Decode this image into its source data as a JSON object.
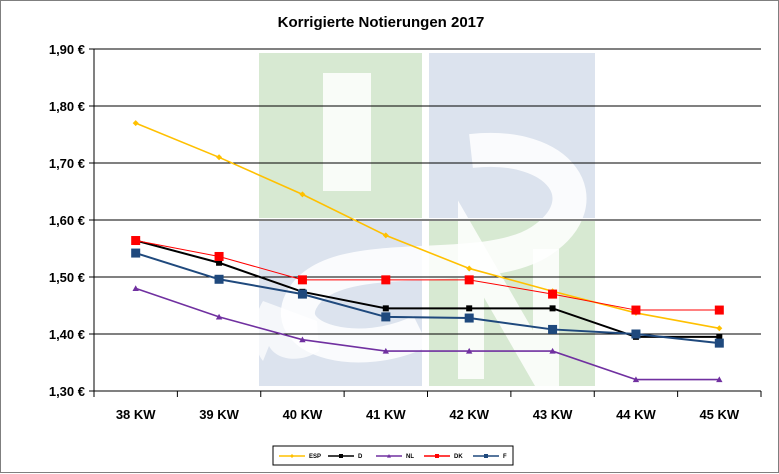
{
  "chart_data": {
    "type": "line",
    "title": "Korrigierte Notierungen 2017",
    "categories": [
      "38 KW",
      "39 KW",
      "40 KW",
      "41 KW",
      "42 KW",
      "43 KW",
      "44 KW",
      "45 KW"
    ],
    "ylim": [
      1.3,
      1.9
    ],
    "yticks": [
      1.3,
      1.4,
      1.5,
      1.6,
      1.7,
      1.8,
      1.9
    ],
    "ytick_labels": [
      "1,30 €",
      "1,40 €",
      "1,50 €",
      "1,60 €",
      "1,70 €",
      "1,80 €",
      "1,90 €"
    ],
    "grid": true,
    "legend_position": "bottom",
    "series": [
      {
        "name": "ESP",
        "color": "#FFC000",
        "marker": "diamond",
        "values": [
          1.77,
          1.71,
          1.645,
          1.573,
          1.515,
          1.475,
          1.437,
          1.41
        ]
      },
      {
        "name": "D",
        "color": "#000000",
        "marker": "square",
        "values": [
          1.564,
          1.525,
          1.474,
          1.445,
          1.445,
          1.445,
          1.395,
          1.395
        ]
      },
      {
        "name": "NL",
        "color": "#7030A0",
        "marker": "triangle",
        "values": [
          1.48,
          1.43,
          1.39,
          1.37,
          1.37,
          1.37,
          1.32,
          1.32
        ]
      },
      {
        "name": "DK",
        "color": "#FF0000",
        "marker": "square",
        "values": [
          1.564,
          1.536,
          1.495,
          1.495,
          1.495,
          1.47,
          1.442,
          1.442
        ]
      },
      {
        "name": "F",
        "color": "#1F497D",
        "marker": "square",
        "values": [
          1.542,
          1.496,
          1.47,
          1.43,
          1.428,
          1.408,
          1.4,
          1.384
        ]
      }
    ]
  },
  "watermark": {
    "letters": [
      "I",
      "S",
      "N"
    ],
    "color_green": "#D7E9D2",
    "color_blue": "#DCE3EE"
  }
}
